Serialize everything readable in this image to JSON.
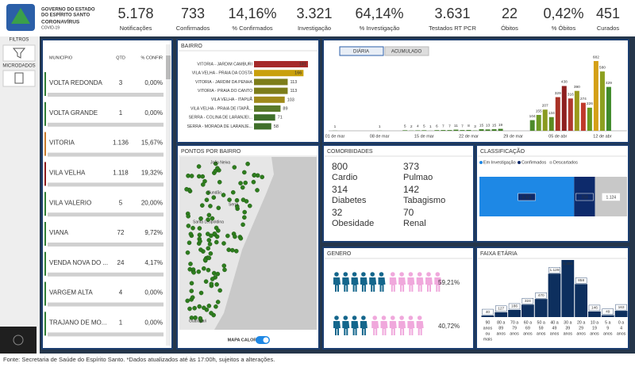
{
  "header": {
    "org_lines": [
      "GOVERNO DO ESTADO",
      "DO ESPÍRITO SANTO"
    ],
    "program": "CORONAVÍRUS",
    "subprogram": "COVID-19"
  },
  "kpis": [
    {
      "value": "5.178",
      "label": "Notificações"
    },
    {
      "value": "733",
      "label": "Confirmados"
    },
    {
      "value": "14,16%",
      "label": "% Confirmados"
    },
    {
      "value": "3.321",
      "label": "Investigação"
    },
    {
      "value": "64,14%",
      "label": "% Investigação"
    },
    {
      "value": "3.631",
      "label": "Testados RT PCR"
    },
    {
      "value": "22",
      "label": "Óbitos"
    },
    {
      "value": "0,42%",
      "label": "% Óbitos"
    },
    {
      "value": "451",
      "label": "Curados"
    }
  ],
  "sidebar": [
    "FILTROS",
    "MICRODADOS"
  ],
  "municipios": {
    "headers": [
      "MUNICÍPIO",
      "QTD",
      "% CONFIR"
    ],
    "rows": [
      [
        "VOLTA REDONDA",
        "3",
        "0,00%"
      ],
      [
        "VOLTA GRANDE",
        "1",
        "0,00%"
      ],
      [
        "VITORIA",
        "1.136",
        "15,67%"
      ],
      [
        "VILA VELHA",
        "1.118",
        "19,32%"
      ],
      [
        "VILA VALERIO",
        "5",
        "20,00%"
      ],
      [
        "VIANA",
        "72",
        "9,72%"
      ],
      [
        "VENDA NOVA DO ...",
        "24",
        "4,17%"
      ],
      [
        "VARGEM ALTA",
        "4",
        "0,00%"
      ],
      [
        "TRAJANO DE MO...",
        "1",
        "0,00%"
      ]
    ],
    "colors": [
      "#2e7d32",
      "#2e7d32",
      "#c8792a",
      "#8b1a1a",
      "#2e7d32",
      "#2e7d32",
      "#2e7d32",
      "#2e7d32",
      "#2e7d32"
    ]
  },
  "bairro": {
    "title": "BAIRRO",
    "categories": [
      "VITORIA - JARDIM CAMBURI",
      "VILA VELHA - PRAIA DA COSTA",
      "VITORIA - JARDIM DA PENHA",
      "VITORIA - PRAIA DO CANTO",
      "VILA VELHA - ITAPUÃ",
      "VILA VELHA - PRAIA DE ITAPÃ...",
      "SERRA - COLINA DE LARANJEI...",
      "SERRA - MORADA DE LARANJE..."
    ],
    "values": [
      181,
      166,
      113,
      113,
      103,
      89,
      71,
      58
    ],
    "colors": [
      "#a52a2a",
      "#c9a00c",
      "#7d7d1a",
      "#7d7d1a",
      "#a08a1a",
      "#5a7a2a",
      "#3f6f2a",
      "#3f6f2a"
    ]
  },
  "timeline": {
    "tabs": [
      "DIÁRIA",
      "ACUMULADO"
    ],
    "categories": [
      "01 de mar",
      null,
      null,
      null,
      null,
      null,
      null,
      "08 de mar",
      null,
      null,
      null,
      null,
      null,
      null,
      "15 de mar",
      null,
      null,
      null,
      null,
      null,
      null,
      "22 de mar",
      null,
      null,
      null,
      null,
      null,
      null,
      "29 de mar",
      null,
      null,
      null,
      null,
      null,
      null,
      "05 de abr",
      null,
      null,
      null,
      null,
      null,
      null,
      "12 de abr",
      null,
      null,
      null
    ],
    "values": [
      1,
      null,
      null,
      null,
      null,
      null,
      null,
      1,
      null,
      null,
      null,
      5,
      2,
      4,
      5,
      1,
      6,
      7,
      7,
      11,
      7,
      8,
      3,
      15,
      13,
      15,
      19,
      null,
      null,
      null,
      null,
      104,
      155,
      207,
      134,
      329,
      438,
      316,
      390,
      274,
      226,
      682,
      580,
      429,
      null,
      null
    ],
    "colors": [
      "#3e7d24",
      null,
      null,
      null,
      null,
      null,
      null,
      "#3e7d24",
      null,
      null,
      null,
      "#3e7d24",
      "#3e7d24",
      "#3e7d24",
      "#3e7d24",
      "#3e7d24",
      "#3e7d24",
      "#3e7d24",
      "#3e7d24",
      "#3e7d24",
      "#3e7d24",
      "#3e7d24",
      "#3e7d24",
      "#3e7d24",
      "#3e7d24",
      "#3e7d24",
      "#3e7d24",
      null,
      null,
      null,
      null,
      "#4c8a2a",
      "#6e9a24",
      "#8a9a20",
      "#5b8a22",
      "#a93226",
      "#8e1f1f",
      "#b0382e",
      "#9a9a1a",
      "#c0392b",
      "#6b9a20",
      "#d4a017",
      "#8ca020",
      "#3f8a2a",
      null,
      null
    ]
  },
  "map": {
    "title": "PONTOS POR BAIRRO",
    "places": [
      "João Neiva",
      "Fundão",
      "Serra",
      "Santa Leopoldina",
      "Guarapari"
    ],
    "toggle": "MAPA CALOR"
  },
  "comorbidades": {
    "title": "COMORBIDADES",
    "items": [
      {
        "value": "800",
        "label": "Cardio"
      },
      {
        "value": "373",
        "label": "Pulmao"
      },
      {
        "value": "314",
        "label": "Diabetes"
      },
      {
        "value": "142",
        "label": "Tabagismo"
      },
      {
        "value": "32",
        "label": "Obesidade"
      },
      {
        "value": "70",
        "label": "Renal"
      }
    ]
  },
  "classificacao": {
    "title": "CLASSIFICAÇÃO",
    "legend": [
      "Em Investigação",
      "Confirmados",
      "Descartados"
    ],
    "values": [
      3321,
      733,
      1124
    ],
    "value_labels": [
      "3.321",
      "733",
      "1.124"
    ],
    "colors": [
      "#1e88e5",
      "#0d2a6b",
      "#c8c8c8"
    ]
  },
  "genero": {
    "title": "GENERO",
    "rows": [
      {
        "label": "59,21%",
        "a": 6,
        "b": 6
      },
      {
        "label": "40,72%",
        "a": 4,
        "b": 6
      }
    ]
  },
  "faixa": {
    "title": "FAIXA ETÁRIA",
    "categories": [
      [
        "90",
        "anos",
        "ou",
        "mais"
      ],
      [
        "80 a",
        "89",
        "anos"
      ],
      [
        "70 a",
        "79",
        "anos"
      ],
      [
        "60 a",
        "69",
        "anos"
      ],
      [
        "50 a",
        "59",
        "anos"
      ],
      [
        "40 a",
        "49",
        "anos"
      ],
      [
        "30 a",
        "39",
        "anos"
      ],
      [
        "20 a",
        "29",
        "anos"
      ],
      [
        "10 a",
        "19",
        "anos"
      ],
      [
        "5 a",
        "9",
        "anos"
      ],
      [
        "0 a",
        "4",
        "anos"
      ]
    ],
    "values": [
      40,
      127,
      186,
      324,
      470,
      1129,
      1484,
      858,
      146,
      49,
      163
    ],
    "value_labels": [
      "40",
      "127",
      "186",
      "324",
      "470",
      "1.129",
      "1.484",
      "858",
      "146",
      "49",
      "163"
    ],
    "color": "#0d2f5e"
  },
  "footer": "Fonte: Secretaria de Saúde do Espírito Santo. *Dados atualizados até às 17:00h, sujeitos a alterações."
}
